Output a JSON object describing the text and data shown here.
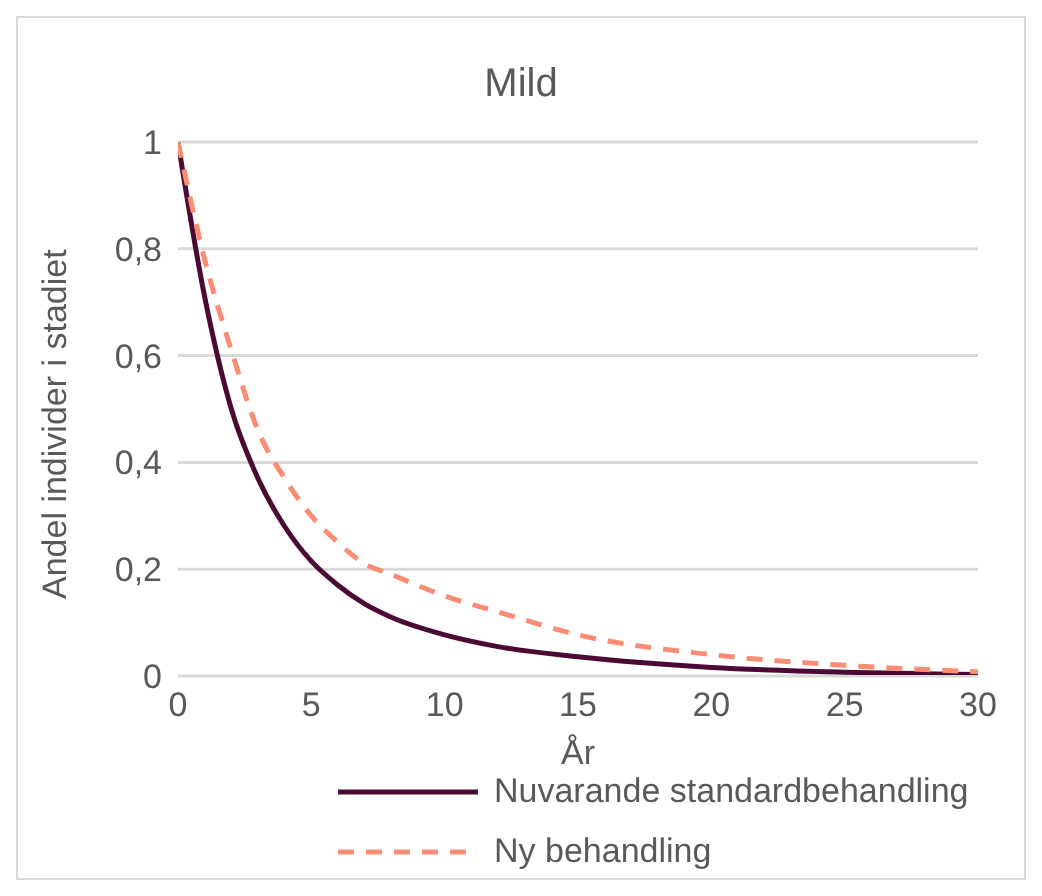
{
  "chart_data": {
    "type": "line",
    "title": "Mild",
    "xlabel": "År",
    "ylabel": "Andel individer i stadiet",
    "x": [
      0,
      1,
      2,
      3,
      4,
      5,
      6,
      7,
      8,
      10,
      12,
      15,
      20,
      25,
      30
    ],
    "series": [
      {
        "name": "Nuvarande standardbehandling",
        "color": "#4b0a33",
        "line_style": "solid",
        "values": [
          1,
          0.71,
          0.5,
          0.37,
          0.28,
          0.215,
          0.17,
          0.135,
          0.11,
          0.077,
          0.055,
          0.036,
          0.016,
          0.007,
          0.003
        ]
      },
      {
        "name": "Ny behandling",
        "color": "#f98c72",
        "line_style": "dashed",
        "values": [
          1,
          0.78,
          0.61,
          0.46,
          0.37,
          0.3,
          0.25,
          0.21,
          0.19,
          0.15,
          0.12,
          0.077,
          0.04,
          0.02,
          0.008
        ]
      }
    ],
    "xlim": [
      0,
      30
    ],
    "xticks": [
      0,
      5,
      10,
      15,
      20,
      25,
      30
    ],
    "ylim": [
      0,
      1
    ],
    "yticks": [
      0,
      {
        "value": 0.2,
        "label": "0,2"
      },
      {
        "value": 0.4,
        "label": "0,4"
      },
      {
        "value": 0.6,
        "label": "0,6"
      },
      {
        "value": 0.8,
        "label": "0,8"
      },
      1
    ],
    "grid": "y",
    "legend": "bottom",
    "marker": "none"
  }
}
